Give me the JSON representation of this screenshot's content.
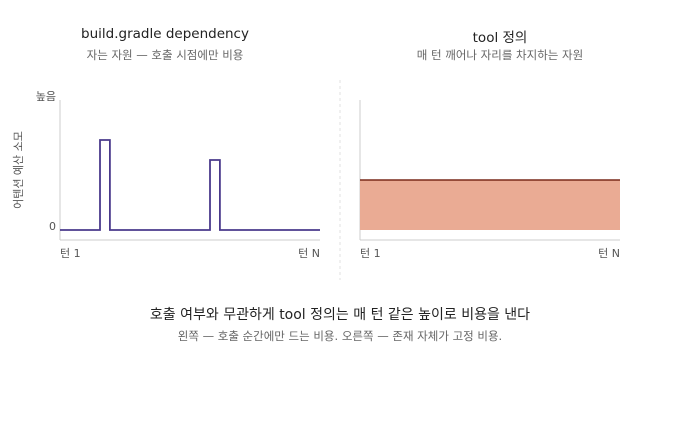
{
  "colors": {
    "spike_line": "#4a3a8c",
    "band_fill": "#eaab94",
    "band_line": "#7a2a1a",
    "axis": "#cccccc",
    "divider": "#e2e2e2"
  },
  "chart_data": [
    {
      "type": "line",
      "title": "build.gradle dependency",
      "subtitle": "자는 자원 — 호출 시점에만 비용",
      "ylabel": "어텐션 예산 소모",
      "y_tick_labels": {
        "low": "0",
        "high": "높음"
      },
      "x_tick_labels": {
        "start": "턴 1",
        "end": "턴 N"
      },
      "xlim": [
        0,
        100
      ],
      "ylim": [
        0,
        100
      ],
      "series": [
        {
          "x": [
            0,
            15.4,
            15.4,
            19.2,
            19.2,
            57.7,
            57.7,
            61.5,
            61.5,
            100
          ],
          "y": [
            0,
            0,
            90,
            90,
            0,
            0,
            70,
            70,
            0,
            0
          ]
        }
      ]
    },
    {
      "type": "area",
      "title": "tool 정의",
      "subtitle": "매 턴 깨어나 자리를 차지하는 자원",
      "x_tick_labels": {
        "start": "턴 1",
        "end": "턴 N"
      },
      "xlim": [
        0,
        100
      ],
      "ylim": [
        0,
        100
      ],
      "series": [
        {
          "x": [
            0,
            100
          ],
          "y": [
            50,
            50
          ]
        }
      ]
    }
  ],
  "caption": {
    "title": "호출 여부와 무관하게 tool 정의는 매 턴 같은 높이로 비용을 낸다",
    "subtitle": "왼쪽 — 호출 순간에만 드는 비용. 오른쪽 — 존재 자체가 고정 비용."
  }
}
